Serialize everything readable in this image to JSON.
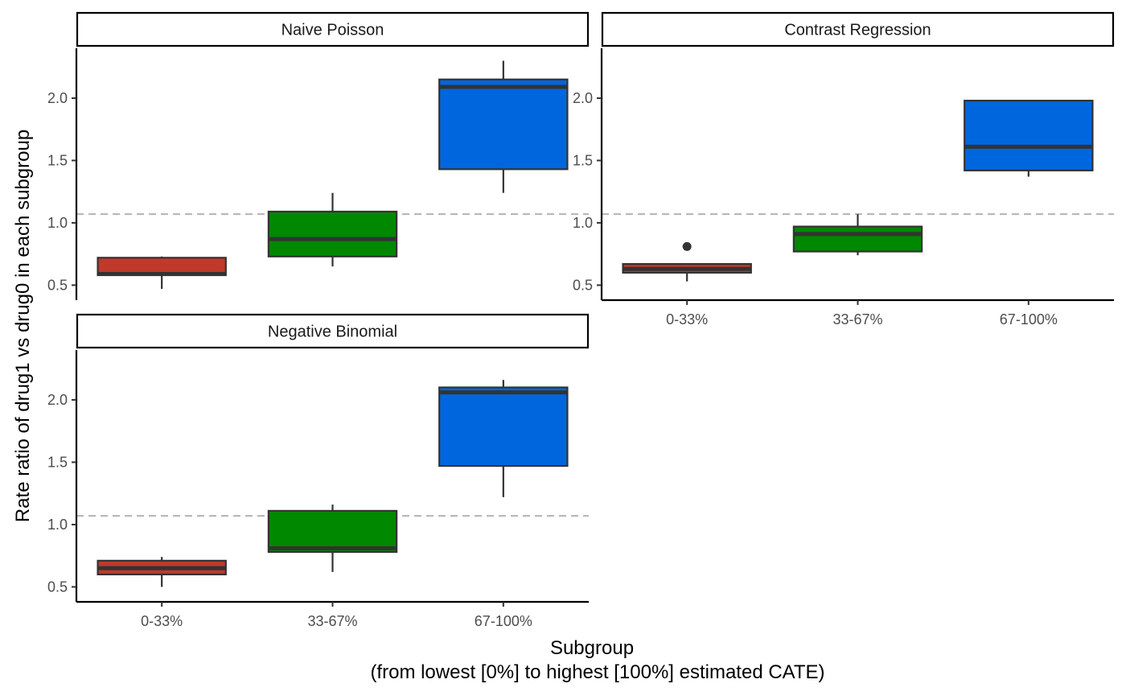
{
  "chart_data": {
    "type": "boxplot",
    "ylabel": "Rate ratio of drug1 vs drug0 in each subgroup",
    "xlabel": "Subgroup",
    "xlabel_line2": "(from lowest [0%] to highest [100%] estimated CATE)",
    "categories": [
      "0-33%",
      "33-67%",
      "67-100%"
    ],
    "colors": {
      "0-33%": "#c0392b",
      "33-67%": "#008800",
      "67-100%": "#0066dd"
    },
    "y_ticks": [
      0.5,
      1.0,
      1.5,
      2.0
    ],
    "y_tick_labels": [
      "0.5",
      "1.0",
      "1.5",
      "2.0"
    ],
    "ylim": [
      0.38,
      2.4
    ],
    "reference_line": 1.07,
    "grid": false,
    "panels": [
      {
        "title": "Naive Poisson",
        "boxes": [
          {
            "category": "0-33%",
            "whisker_low": 0.47,
            "q1": 0.58,
            "median": 0.59,
            "q3": 0.72,
            "whisker_high": 0.73,
            "outliers": []
          },
          {
            "category": "33-67%",
            "whisker_low": 0.65,
            "q1": 0.73,
            "median": 0.87,
            "q3": 1.09,
            "whisker_high": 1.24,
            "outliers": []
          },
          {
            "category": "67-100%",
            "whisker_low": 1.24,
            "q1": 1.43,
            "median": 2.09,
            "q3": 2.15,
            "whisker_high": 2.3,
            "outliers": []
          }
        ]
      },
      {
        "title": "Contrast Regression",
        "boxes": [
          {
            "category": "0-33%",
            "whisker_low": 0.53,
            "q1": 0.6,
            "median": 0.63,
            "q3": 0.67,
            "whisker_high": 0.67,
            "outliers": [
              0.81
            ]
          },
          {
            "category": "33-67%",
            "whisker_low": 0.74,
            "q1": 0.77,
            "median": 0.91,
            "q3": 0.97,
            "whisker_high": 1.07,
            "outliers": []
          },
          {
            "category": "67-100%",
            "whisker_low": 1.37,
            "q1": 1.42,
            "median": 1.61,
            "q3": 1.98,
            "whisker_high": 1.98,
            "outliers": []
          }
        ]
      },
      {
        "title": "Negative Binomial",
        "boxes": [
          {
            "category": "0-33%",
            "whisker_low": 0.5,
            "q1": 0.6,
            "median": 0.65,
            "q3": 0.71,
            "whisker_high": 0.74,
            "outliers": []
          },
          {
            "category": "33-67%",
            "whisker_low": 0.62,
            "q1": 0.78,
            "median": 0.81,
            "q3": 1.11,
            "whisker_high": 1.16,
            "outliers": []
          },
          {
            "category": "67-100%",
            "whisker_low": 1.22,
            "q1": 1.47,
            "median": 2.06,
            "q3": 2.1,
            "whisker_high": 2.16,
            "outliers": []
          }
        ]
      }
    ]
  }
}
